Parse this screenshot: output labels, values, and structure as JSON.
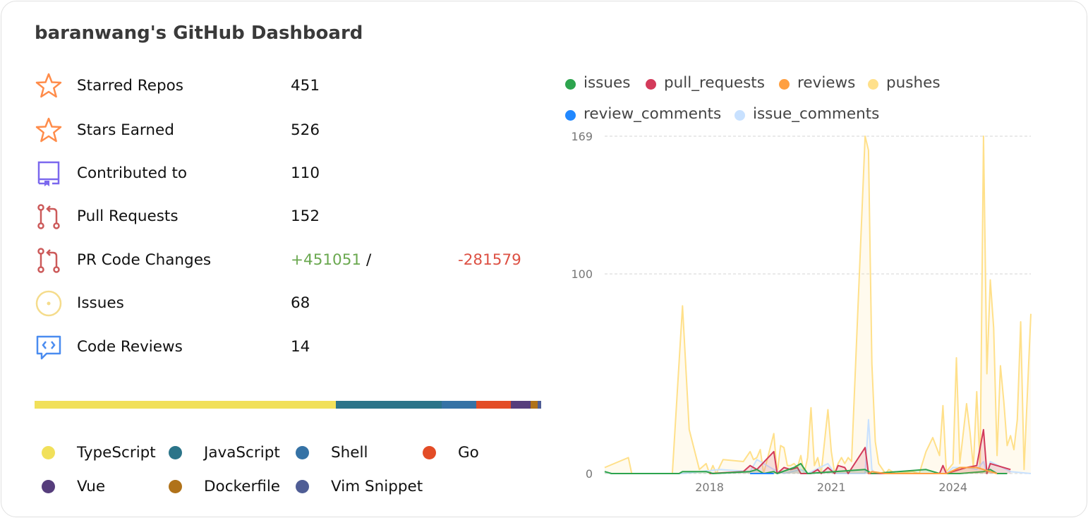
{
  "title": "baranwang's GitHub Dashboard",
  "stats": [
    {
      "label": "Starred Repos",
      "value": "451",
      "icon": "star-icon",
      "color": "#ff8c4a"
    },
    {
      "label": "Stars Earned",
      "value": "526",
      "icon": "star-icon",
      "color": "#ff8c4a"
    },
    {
      "label": "Contributed to",
      "value": "110",
      "icon": "repo-icon",
      "color": "#7b68ee"
    },
    {
      "label": "Pull Requests",
      "value": "152",
      "icon": "pull-request-icon",
      "color": "#cc5a5a"
    },
    {
      "label": "PR Code Changes",
      "additions": "+451051",
      "separator": "/",
      "deletions": "-281579",
      "icon": "pull-request-icon",
      "color": "#cc5a5a"
    },
    {
      "label": "Issues",
      "value": "68",
      "icon": "issue-icon",
      "color": "#f5dc8c"
    },
    {
      "label": "Code Reviews",
      "value": "14",
      "icon": "code-review-icon",
      "color": "#4a8cf0"
    }
  ],
  "languages": [
    {
      "name": "TypeScript",
      "percent": 59.5,
      "color": "#f1e05a"
    },
    {
      "name": "JavaScript",
      "percent": 20.9,
      "color": "#2b7489"
    },
    {
      "name": "Shell",
      "percent": 6.8,
      "color": "#3572a5"
    },
    {
      "name": "Go",
      "percent": 6.8,
      "color": "#e34c26"
    },
    {
      "name": "Vue",
      "percent": 3.9,
      "color": "#563d7c"
    },
    {
      "name": "Dockerfile",
      "percent": 1.4,
      "color": "#b07219"
    },
    {
      "name": "Vim Snippet",
      "percent": 0.7,
      "color": "#4f5d95"
    }
  ],
  "chart_data": {
    "type": "line",
    "xlim": [
      "2015-06",
      "2025-12"
    ],
    "ylim": [
      0,
      169
    ],
    "yticks": [
      "0",
      "100",
      "169"
    ],
    "xticks": [
      "2018",
      "2021",
      "2024"
    ],
    "grid": true,
    "legend": "top",
    "series": [
      {
        "name": "issues",
        "color": "#2da44e",
        "points": [
          [
            "2015-06",
            1
          ],
          [
            "2015-08",
            0
          ],
          [
            "2017-04",
            0
          ],
          [
            "2017-05",
            1
          ],
          [
            "2017-12",
            1
          ],
          [
            "2018-02",
            0
          ],
          [
            "2019-01",
            1
          ],
          [
            "2019-03",
            2
          ],
          [
            "2019-05",
            0
          ],
          [
            "2019-08",
            1
          ],
          [
            "2019-09",
            0
          ],
          [
            "2020-02",
            3
          ],
          [
            "2020-04",
            5
          ],
          [
            "2020-06",
            0
          ],
          [
            "2021-11",
            2
          ],
          [
            "2022-01",
            0
          ],
          [
            "2023-05",
            2
          ],
          [
            "2023-09",
            0
          ],
          [
            "2024-03",
            0
          ],
          [
            "2024-10",
            1
          ],
          [
            "2024-12",
            2
          ],
          [
            "2025-02",
            0
          ],
          [
            "2025-05",
            0
          ]
        ]
      },
      {
        "name": "pull_requests",
        "color": "#d33a5a",
        "points": [
          [
            "2018-01",
            0
          ],
          [
            "2018-11",
            1
          ],
          [
            "2019-01",
            4
          ],
          [
            "2019-03",
            2
          ],
          [
            "2019-08",
            11
          ],
          [
            "2019-09",
            0
          ],
          [
            "2019-11",
            3
          ],
          [
            "2020-01",
            2
          ],
          [
            "2020-03",
            3
          ],
          [
            "2020-04",
            0
          ],
          [
            "2020-07",
            0
          ],
          [
            "2020-09",
            2
          ],
          [
            "2020-10",
            0
          ],
          [
            "2020-12",
            3
          ],
          [
            "2021-02",
            0
          ],
          [
            "2021-03",
            4
          ],
          [
            "2021-05",
            3
          ],
          [
            "2021-06",
            0
          ],
          [
            "2021-11",
            13
          ],
          [
            "2021-12",
            0
          ],
          [
            "2023-09",
            0
          ],
          [
            "2023-10",
            4
          ],
          [
            "2023-11",
            0
          ],
          [
            "2024-03",
            2
          ],
          [
            "2024-05",
            3
          ],
          [
            "2024-08",
            4
          ],
          [
            "2024-10",
            22
          ],
          [
            "2024-11",
            0
          ],
          [
            "2024-12",
            5
          ],
          [
            "2025-06",
            2
          ]
        ]
      },
      {
        "name": "reviews",
        "color": "#ff9f40",
        "points": [
          [
            "2021-12",
            0
          ],
          [
            "2022-01",
            1
          ],
          [
            "2022-05",
            0
          ],
          [
            "2023-11",
            0
          ],
          [
            "2024-03",
            3
          ],
          [
            "2024-08",
            3
          ],
          [
            "2024-12",
            1
          ],
          [
            "2025-02",
            0
          ]
        ]
      },
      {
        "name": "pushes",
        "color": "#ffe08a",
        "points": [
          [
            "2015-06",
            3
          ],
          [
            "2016-01",
            8
          ],
          [
            "2016-02",
            0
          ],
          [
            "2017-02",
            0
          ],
          [
            "2017-05",
            84
          ],
          [
            "2017-07",
            22
          ],
          [
            "2017-10",
            2
          ],
          [
            "2017-12",
            5
          ],
          [
            "2018-01",
            0
          ],
          [
            "2018-02",
            4
          ],
          [
            "2018-03",
            0
          ],
          [
            "2018-05",
            7
          ],
          [
            "2018-11",
            6
          ],
          [
            "2019-01",
            11
          ],
          [
            "2019-02",
            7
          ],
          [
            "2019-03",
            8
          ],
          [
            "2019-04",
            12
          ],
          [
            "2019-05",
            0
          ],
          [
            "2019-08",
            20
          ],
          [
            "2019-09",
            0
          ],
          [
            "2019-10",
            14
          ],
          [
            "2019-11",
            13
          ],
          [
            "2019-12",
            4
          ],
          [
            "2020-01",
            4
          ],
          [
            "2020-02",
            5
          ],
          [
            "2020-03",
            3
          ],
          [
            "2020-04",
            9
          ],
          [
            "2020-05",
            0
          ],
          [
            "2020-06",
            8
          ],
          [
            "2020-07",
            33
          ],
          [
            "2020-08",
            4
          ],
          [
            "2020-09",
            8
          ],
          [
            "2020-10",
            0
          ],
          [
            "2020-12",
            32
          ],
          [
            "2021-01",
            11
          ],
          [
            "2021-02",
            0
          ],
          [
            "2021-03",
            5
          ],
          [
            "2021-04",
            8
          ],
          [
            "2021-05",
            5
          ],
          [
            "2021-06",
            8
          ],
          [
            "2021-07",
            6
          ],
          [
            "2021-11",
            169
          ],
          [
            "2021-12",
            162
          ],
          [
            "2022-01",
            55
          ],
          [
            "2022-02",
            16
          ],
          [
            "2022-03",
            5
          ],
          [
            "2022-05",
            0
          ],
          [
            "2022-06",
            2
          ],
          [
            "2022-08",
            0
          ],
          [
            "2023-01",
            1
          ],
          [
            "2023-03",
            0
          ],
          [
            "2023-05",
            11
          ],
          [
            "2023-07",
            18
          ],
          [
            "2023-09",
            9
          ],
          [
            "2023-10",
            34
          ],
          [
            "2023-11",
            1
          ],
          [
            "2024-01",
            5
          ],
          [
            "2024-02",
            58
          ],
          [
            "2024-03",
            5
          ],
          [
            "2024-05",
            35
          ],
          [
            "2024-06",
            21
          ],
          [
            "2024-07",
            3
          ],
          [
            "2024-08",
            41
          ],
          [
            "2024-09",
            3
          ],
          [
            "2024-10",
            169
          ],
          [
            "2024-11",
            50
          ],
          [
            "2024-12",
            97
          ],
          [
            "2025-01",
            73
          ],
          [
            "2025-02",
            9
          ],
          [
            "2025-03",
            54
          ],
          [
            "2025-04",
            36
          ],
          [
            "2025-05",
            14
          ],
          [
            "2025-06",
            19
          ],
          [
            "2025-07",
            12
          ],
          [
            "2025-08",
            27
          ],
          [
            "2025-09",
            76
          ],
          [
            "2025-10",
            2
          ],
          [
            "2025-12",
            80
          ]
        ]
      },
      {
        "name": "review_comments",
        "color": "#2188ff",
        "points": [
          [
            "2019-01",
            0
          ],
          [
            "2019-08",
            0
          ]
        ]
      },
      {
        "name": "issue_comments",
        "color": "#c8e1ff",
        "points": [
          [
            "2015-06",
            1
          ],
          [
            "2015-08",
            0
          ],
          [
            "2017-05",
            0
          ],
          [
            "2018-04",
            2
          ],
          [
            "2019-01",
            1
          ],
          [
            "2019-03",
            7
          ],
          [
            "2019-08",
            2
          ],
          [
            "2019-11",
            0
          ],
          [
            "2020-04",
            2
          ],
          [
            "2020-06",
            0
          ],
          [
            "2020-12",
            5
          ],
          [
            "2021-02",
            0
          ],
          [
            "2021-11",
            0
          ],
          [
            "2021-12",
            27
          ],
          [
            "2022-01",
            2
          ],
          [
            "2022-02",
            0
          ],
          [
            "2023-11",
            0
          ],
          [
            "2024-01",
            3
          ],
          [
            "2024-05",
            3
          ],
          [
            "2024-08",
            2
          ],
          [
            "2024-10",
            6
          ],
          [
            "2024-11",
            0
          ],
          [
            "2024-12",
            6
          ],
          [
            "2025-06",
            1
          ],
          [
            "2025-12",
            0
          ]
        ]
      }
    ]
  }
}
